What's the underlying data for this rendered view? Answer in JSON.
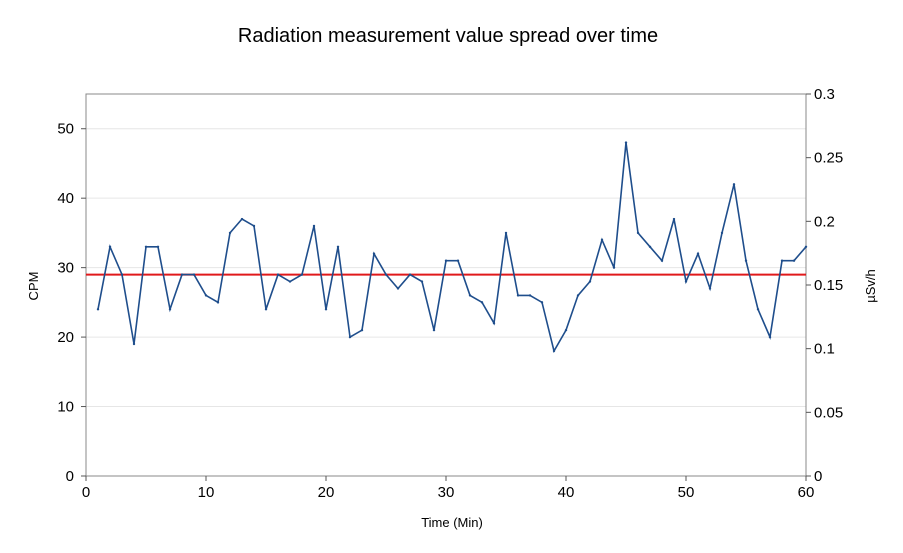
{
  "chart_data": {
    "type": "line",
    "title": "Radiation measurement value spread over time",
    "xlabel": "Time (Min)",
    "ylabel": "CPM",
    "y2label": "µSv/h",
    "xlim": [
      0,
      60
    ],
    "ylim": [
      0,
      55
    ],
    "y2lim": [
      0,
      0.3
    ],
    "xticks": [
      "0",
      "10",
      "20",
      "30",
      "40",
      "50",
      "60"
    ],
    "yticks": [
      "0",
      "10",
      "20",
      "30",
      "40",
      "50"
    ],
    "y2ticks": [
      "0",
      "0.05",
      "0.1",
      "0.15",
      "0.2",
      "0.25",
      "0.3"
    ],
    "grid": true,
    "series": [
      {
        "color": "#1f4e8c",
        "x": [
          1,
          2,
          3,
          4,
          5,
          6,
          7,
          8,
          9,
          10,
          11,
          12,
          13,
          14,
          15,
          16,
          17,
          18,
          19,
          20,
          21,
          22,
          23,
          24,
          25,
          26,
          27,
          28,
          29,
          30,
          31,
          32,
          33,
          34,
          35,
          36,
          37,
          38,
          39,
          40,
          41,
          42,
          43,
          44,
          45,
          46,
          47,
          48,
          49,
          50,
          51,
          52,
          53,
          54,
          55,
          56,
          57,
          58,
          59,
          60
        ],
        "y": [
          24,
          33,
          29,
          19,
          33,
          33,
          24,
          29,
          29,
          26,
          25,
          35,
          37,
          36,
          24,
          29,
          28,
          29,
          36,
          24,
          33,
          20,
          21,
          32,
          29,
          27,
          29,
          28,
          21,
          31,
          31,
          26,
          25,
          22,
          35,
          26,
          26,
          25,
          18,
          21,
          26,
          28,
          34,
          30,
          48,
          35,
          33,
          31,
          37,
          28,
          32,
          27,
          35,
          42,
          31,
          24,
          20,
          31,
          31,
          33
        ]
      }
    ],
    "reference_line": {
      "y": 29,
      "color": "#e0191b"
    }
  }
}
